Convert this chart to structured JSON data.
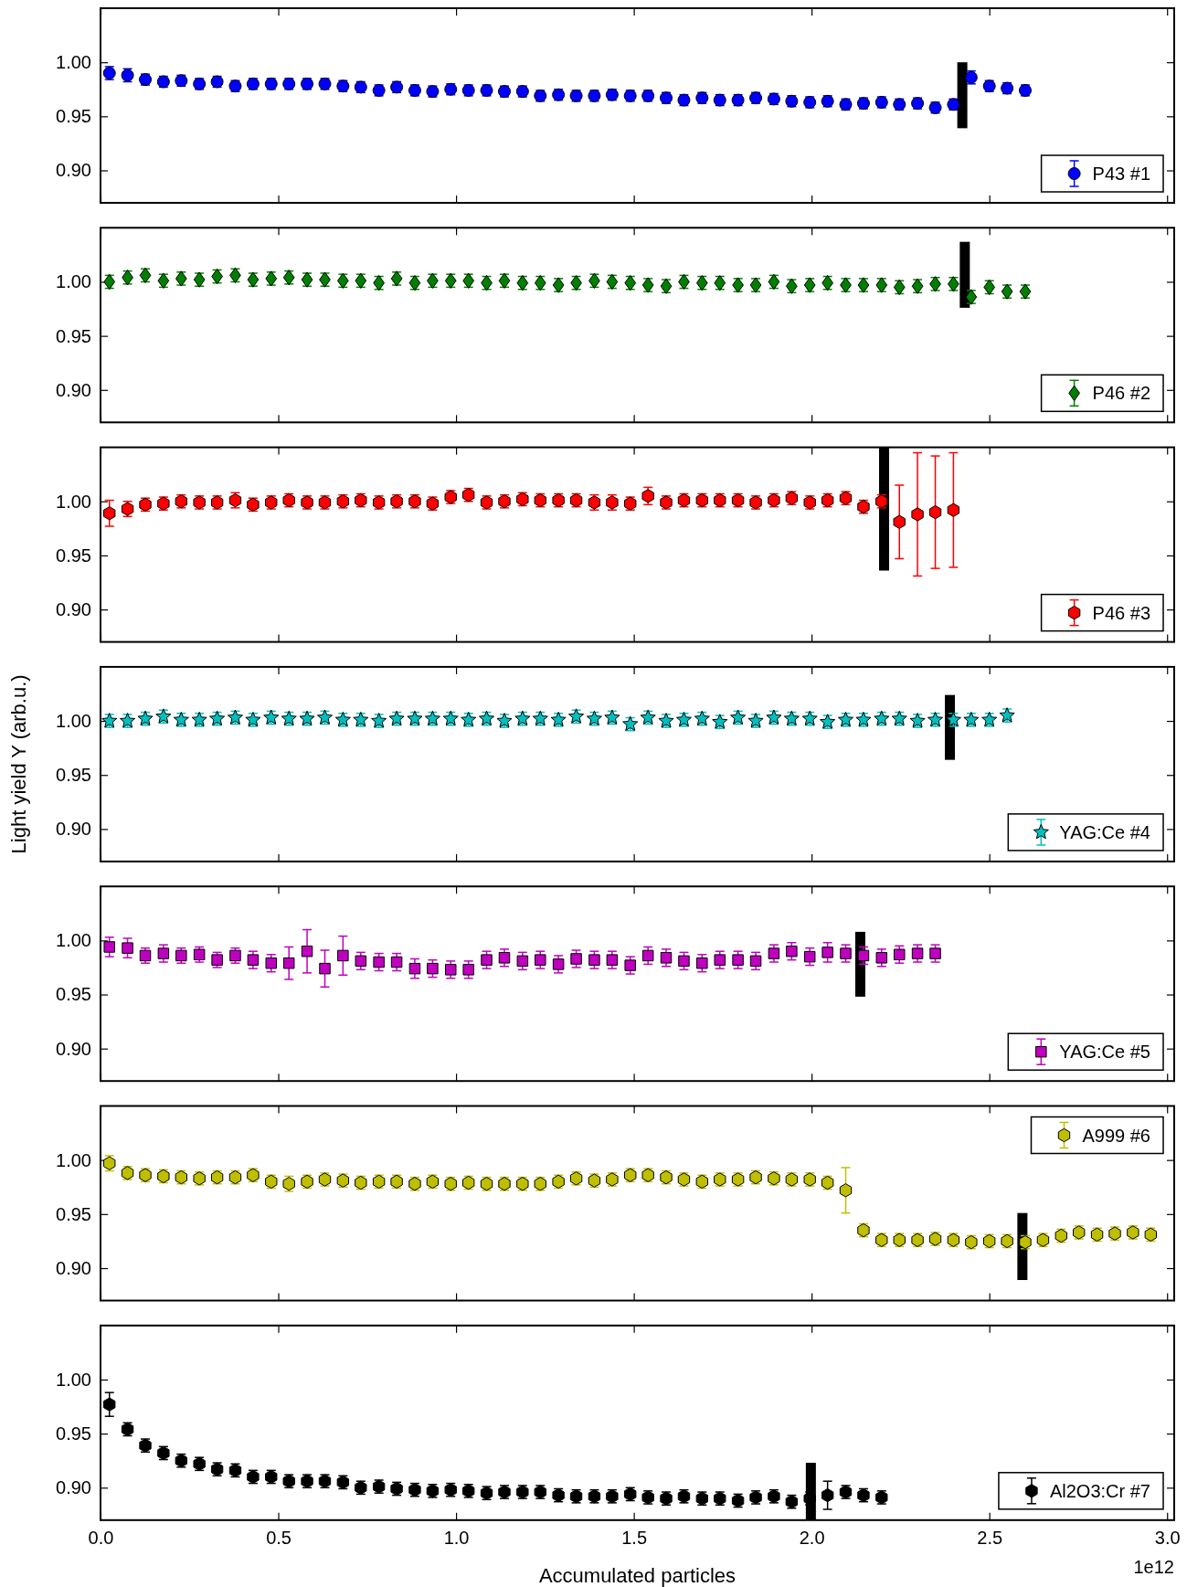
{
  "chart_data": [
    {
      "type": "scatter",
      "legend": "bottom right",
      "tick_labels": "y",
      "xlim": [
        0,
        3.02
      ],
      "xticks": [
        {
          "value": 0,
          "label": null
        },
        {
          "value": 0.5,
          "label": null
        },
        {
          "value": 1,
          "label": null
        },
        {
          "value": 1.5,
          "label": null
        },
        {
          "value": 2,
          "label": null
        },
        {
          "value": 2.5,
          "label": null
        },
        {
          "value": 3,
          "label": null
        }
      ],
      "ylim": [
        0.87,
        1.05
      ],
      "yticks": [
        {
          "value": 0.9,
          "label": "0.90"
        },
        {
          "value": 0.95,
          "label": "0.95"
        },
        {
          "value": 1,
          "label": "1.00"
        }
      ],
      "x": [
        0.025,
        0.076,
        0.126,
        0.177,
        0.227,
        0.278,
        0.328,
        0.379,
        0.429,
        0.48,
        0.53,
        0.581,
        0.631,
        0.682,
        0.732,
        0.783,
        0.833,
        0.884,
        0.934,
        0.985,
        1.035,
        1.086,
        1.136,
        1.187,
        1.237,
        1.288,
        1.338,
        1.389,
        1.439,
        1.49,
        1.54,
        1.591,
        1.641,
        1.692,
        1.742,
        1.793,
        1.843,
        1.894,
        1.944,
        1.995,
        2.045,
        2.096,
        2.146,
        2.197,
        2.247,
        2.298,
        2.348,
        2.399,
        2.449,
        2.5,
        2.55,
        2.601
      ],
      "series": [
        {
          "name": "P43 #1",
          "color": "#0000ff",
          "marker": "circle",
          "values": [
            0.99,
            0.988,
            0.984,
            0.982,
            0.983,
            0.98,
            0.982,
            0.978,
            0.98,
            0.98,
            0.98,
            0.98,
            0.98,
            0.978,
            0.977,
            0.974,
            0.977,
            0.974,
            0.973,
            0.975,
            0.974,
            0.974,
            0.973,
            0.973,
            0.969,
            0.97,
            0.969,
            0.969,
            0.97,
            0.969,
            0.969,
            0.967,
            0.965,
            0.967,
            0.965,
            0.965,
            0.967,
            0.966,
            0.964,
            0.963,
            0.964,
            0.961,
            0.962,
            0.963,
            0.961,
            0.962,
            0.958,
            0.961,
            0.986,
            0.978,
            0.976,
            0.974
          ],
          "errors": [
            0.006,
            0.006,
            0.005,
            0.005,
            0.005,
            0.005,
            0.005,
            0.005,
            0.005,
            0.005,
            0.005,
            0.005,
            0.005,
            0.005,
            0.005,
            0.005,
            0.005,
            0.005,
            0.005,
            0.005,
            0.005,
            0.005,
            0.005,
            0.005,
            0.005,
            0.005,
            0.005,
            0.005,
            0.005,
            0.005,
            0.005,
            0.005,
            0.005,
            0.005,
            0.005,
            0.005,
            0.005,
            0.005,
            0.005,
            0.005,
            0.005,
            0.005,
            0.005,
            0.005,
            0.005,
            0.005,
            0.005,
            0.005,
            0.006,
            0.005,
            0.005,
            0.005
          ]
        },
        {
          "type": "line",
          "color": "#000000",
          "x": [
            2.424,
            2.424
          ],
          "values": [
            0.939,
            1.0
          ]
        }
      ]
    },
    {
      "type": "scatter",
      "legend": "bottom right",
      "tick_labels": "y",
      "xlim": [
        0,
        3.02
      ],
      "xticks": [
        {
          "value": 0,
          "label": null
        },
        {
          "value": 0.5,
          "label": null
        },
        {
          "value": 1,
          "label": null
        },
        {
          "value": 1.5,
          "label": null
        },
        {
          "value": 2,
          "label": null
        },
        {
          "value": 2.5,
          "label": null
        },
        {
          "value": 3,
          "label": null
        }
      ],
      "ylim": [
        0.87,
        1.05
      ],
      "yticks": [
        {
          "value": 0.9,
          "label": "0.90"
        },
        {
          "value": 0.95,
          "label": "0.95"
        },
        {
          "value": 1,
          "label": "1.00"
        }
      ],
      "x": [
        0.025,
        0.076,
        0.126,
        0.177,
        0.227,
        0.278,
        0.328,
        0.379,
        0.429,
        0.48,
        0.53,
        0.581,
        0.631,
        0.682,
        0.732,
        0.783,
        0.833,
        0.884,
        0.934,
        0.985,
        1.035,
        1.086,
        1.136,
        1.187,
        1.237,
        1.288,
        1.338,
        1.389,
        1.439,
        1.49,
        1.54,
        1.591,
        1.641,
        1.692,
        1.742,
        1.793,
        1.843,
        1.894,
        1.944,
        1.995,
        2.045,
        2.096,
        2.146,
        2.197,
        2.247,
        2.298,
        2.348,
        2.399,
        2.449,
        2.5,
        2.55,
        2.601
      ],
      "series": [
        {
          "name": "P46 #2",
          "color": "#008000",
          "marker": "diamond",
          "values": [
            1.0,
            1.004,
            1.006,
            1.001,
            1.003,
            1.002,
            1.005,
            1.006,
            1.002,
            1.003,
            1.004,
            1.002,
            1.002,
            1.001,
            1.001,
            0.999,
            1.003,
            0.999,
            1.001,
            1.001,
            1.001,
            0.999,
            1.001,
            0.999,
            0.999,
            0.997,
            0.999,
            1.001,
            1.0,
            0.999,
            0.997,
            0.996,
            1.0,
            0.999,
            0.999,
            0.997,
            0.997,
            1.0,
            0.996,
            0.997,
            0.999,
            0.997,
            0.997,
            0.997,
            0.995,
            0.996,
            0.998,
            0.998,
            0.986,
            0.995,
            0.991,
            0.991
          ],
          "errors": [
            0.006,
            0.006,
            0.006,
            0.006,
            0.006,
            0.006,
            0.006,
            0.006,
            0.006,
            0.006,
            0.006,
            0.006,
            0.006,
            0.006,
            0.006,
            0.006,
            0.006,
            0.006,
            0.006,
            0.006,
            0.006,
            0.006,
            0.006,
            0.006,
            0.006,
            0.006,
            0.006,
            0.006,
            0.006,
            0.006,
            0.006,
            0.006,
            0.006,
            0.006,
            0.006,
            0.006,
            0.006,
            0.006,
            0.006,
            0.006,
            0.006,
            0.006,
            0.006,
            0.006,
            0.006,
            0.006,
            0.006,
            0.006,
            0.006,
            0.006,
            0.006,
            0.006
          ]
        },
        {
          "type": "line",
          "color": "#000000",
          "x": [
            2.431,
            2.431
          ],
          "values": [
            0.976,
            1.037
          ]
        }
      ]
    },
    {
      "type": "scatter",
      "legend": "bottom right",
      "tick_labels": "y",
      "xlim": [
        0,
        3.02
      ],
      "xticks": [
        {
          "value": 0,
          "label": null
        },
        {
          "value": 0.5,
          "label": null
        },
        {
          "value": 1,
          "label": null
        },
        {
          "value": 1.5,
          "label": null
        },
        {
          "value": 2,
          "label": null
        },
        {
          "value": 2.5,
          "label": null
        },
        {
          "value": 3,
          "label": null
        }
      ],
      "ylim": [
        0.87,
        1.05
      ],
      "yticks": [
        {
          "value": 0.9,
          "label": "0.90"
        },
        {
          "value": 0.95,
          "label": "0.95"
        },
        {
          "value": 1,
          "label": "1.00"
        }
      ],
      "x": [
        0.025,
        0.076,
        0.126,
        0.177,
        0.227,
        0.278,
        0.328,
        0.379,
        0.429,
        0.48,
        0.53,
        0.581,
        0.631,
        0.682,
        0.732,
        0.783,
        0.833,
        0.884,
        0.934,
        0.985,
        1.035,
        1.086,
        1.136,
        1.187,
        1.237,
        1.288,
        1.338,
        1.389,
        1.439,
        1.49,
        1.54,
        1.591,
        1.641,
        1.692,
        1.742,
        1.793,
        1.843,
        1.894,
        1.944,
        1.995,
        2.045,
        2.096,
        2.146,
        2.197,
        2.247,
        2.298,
        2.348,
        2.399
      ],
      "series": [
        {
          "name": "P46 #3",
          "color": "#ff0000",
          "values": [
            0.989,
            0.993,
            0.997,
            0.998,
            1.0,
            0.999,
            0.999,
            1.001,
            0.997,
            0.999,
            1.001,
            0.999,
            0.999,
            1.0,
            1.001,
            0.999,
            1.0,
            1.0,
            0.998,
            1.004,
            1.006,
            0.999,
            1.0,
            1.002,
            1.001,
            1.001,
            1.001,
            0.999,
            0.999,
            0.998,
            1.005,
            0.999,
            1.001,
            1.001,
            1.001,
            1.001,
            0.999,
            1.001,
            1.003,
            0.999,
            1.001,
            1.003,
            0.995,
            1.0,
            0.981,
            0.988,
            0.99,
            0.992
          ],
          "errors": [
            0.012,
            0.007,
            0.006,
            0.006,
            0.006,
            0.006,
            0.006,
            0.007,
            0.006,
            0.006,
            0.006,
            0.006,
            0.006,
            0.006,
            0.006,
            0.006,
            0.006,
            0.006,
            0.006,
            0.006,
            0.006,
            0.006,
            0.006,
            0.006,
            0.006,
            0.006,
            0.006,
            0.007,
            0.007,
            0.006,
            0.008,
            0.006,
            0.006,
            0.006,
            0.006,
            0.006,
            0.006,
            0.006,
            0.006,
            0.006,
            0.006,
            0.006,
            0.006,
            0.006,
            0.034,
            0.057,
            0.052,
            0.053
          ]
        },
        {
          "type": "line",
          "color": "#000000",
          "x": [
            2.204,
            2.204
          ],
          "values": [
            0.936,
            1.05
          ]
        }
      ]
    },
    {
      "type": "scatter",
      "ylabel": "Light yield Y (arb.u.)",
      "legend": "bottom right",
      "tick_labels": "y",
      "xlim": [
        0,
        3.02
      ],
      "xticks": [
        {
          "value": 0,
          "label": null
        },
        {
          "value": 0.5,
          "label": null
        },
        {
          "value": 1,
          "label": null
        },
        {
          "value": 1.5,
          "label": null
        },
        {
          "value": 2,
          "label": null
        },
        {
          "value": 2.5,
          "label": null
        },
        {
          "value": 3,
          "label": null
        }
      ],
      "ylim": [
        0.87,
        1.05
      ],
      "yticks": [
        {
          "value": 0.9,
          "label": "0.90"
        },
        {
          "value": 0.95,
          "label": "0.95"
        },
        {
          "value": 1,
          "label": "1.00"
        }
      ],
      "x": [
        0.025,
        0.076,
        0.126,
        0.177,
        0.227,
        0.278,
        0.328,
        0.379,
        0.429,
        0.48,
        0.53,
        0.581,
        0.631,
        0.682,
        0.732,
        0.783,
        0.833,
        0.884,
        0.934,
        0.985,
        1.035,
        1.086,
        1.136,
        1.187,
        1.237,
        1.288,
        1.338,
        1.389,
        1.439,
        1.49,
        1.54,
        1.591,
        1.641,
        1.692,
        1.742,
        1.793,
        1.843,
        1.894,
        1.944,
        1.995,
        2.045,
        2.096,
        2.146,
        2.197,
        2.247,
        2.298,
        2.348,
        2.399,
        2.449,
        2.5,
        2.55
      ],
      "series": [
        {
          "name": "YAG:Ce #4",
          "color": "#00bfbf",
          "marker": "star",
          "values": [
            1.0,
            1.0,
            1.002,
            1.004,
            1.001,
            1.001,
            1.002,
            1.003,
            1.001,
            1.003,
            1.002,
            1.002,
            1.003,
            1.001,
            1.001,
            1.0,
            1.002,
            1.002,
            1.002,
            1.002,
            1.001,
            1.002,
            1.0,
            1.002,
            1.002,
            1.001,
            1.004,
            1.002,
            1.003,
            0.997,
            1.003,
            1.0,
            1.001,
            1.002,
            0.999,
            1.003,
            1.0,
            1.003,
            1.002,
            1.002,
            0.999,
            1.001,
            1.001,
            1.002,
            1.002,
            1.0,
            1.001,
            1.001,
            1.001,
            1.001,
            1.005
          ],
          "errors": [
            0.006,
            0.006,
            0.006,
            0.006,
            0.006,
            0.006,
            0.006,
            0.006,
            0.006,
            0.006,
            0.006,
            0.006,
            0.006,
            0.006,
            0.006,
            0.006,
            0.006,
            0.006,
            0.006,
            0.006,
            0.006,
            0.006,
            0.006,
            0.006,
            0.006,
            0.006,
            0.006,
            0.006,
            0.006,
            0.006,
            0.006,
            0.006,
            0.006,
            0.006,
            0.006,
            0.006,
            0.006,
            0.006,
            0.006,
            0.006,
            0.006,
            0.006,
            0.006,
            0.006,
            0.006,
            0.006,
            0.006,
            0.006,
            0.006,
            0.006,
            0.006
          ]
        },
        {
          "type": "line",
          "color": "#000000",
          "x": [
            2.389,
            2.389
          ],
          "values": [
            0.964,
            1.024
          ]
        }
      ]
    },
    {
      "type": "scatter",
      "legend": "bottom right",
      "tick_labels": "y",
      "xlim": [
        0,
        3.02
      ],
      "xticks": [
        {
          "value": 0,
          "label": null
        },
        {
          "value": 0.5,
          "label": null
        },
        {
          "value": 1,
          "label": null
        },
        {
          "value": 1.5,
          "label": null
        },
        {
          "value": 2,
          "label": null
        },
        {
          "value": 2.5,
          "label": null
        },
        {
          "value": 3,
          "label": null
        }
      ],
      "ylim": [
        0.87,
        1.05
      ],
      "yticks": [
        {
          "value": 0.9,
          "label": "0.90"
        },
        {
          "value": 0.95,
          "label": "0.95"
        },
        {
          "value": 1,
          "label": "1.00"
        }
      ],
      "x": [
        0.025,
        0.076,
        0.126,
        0.177,
        0.227,
        0.278,
        0.328,
        0.379,
        0.429,
        0.48,
        0.53,
        0.581,
        0.631,
        0.682,
        0.732,
        0.783,
        0.833,
        0.884,
        0.934,
        0.985,
        1.035,
        1.086,
        1.136,
        1.187,
        1.237,
        1.288,
        1.338,
        1.389,
        1.439,
        1.49,
        1.54,
        1.591,
        1.641,
        1.692,
        1.742,
        1.793,
        1.843,
        1.894,
        1.944,
        1.995,
        2.045,
        2.096,
        2.146,
        2.197,
        2.247,
        2.298,
        2.348
      ],
      "series": [
        {
          "name": "YAG:Ce #5",
          "color": "#bf00bf",
          "marker": "square",
          "values": [
            0.994,
            0.993,
            0.986,
            0.988,
            0.986,
            0.987,
            0.982,
            0.986,
            0.982,
            0.979,
            0.979,
            0.99,
            0.974,
            0.986,
            0.981,
            0.98,
            0.98,
            0.974,
            0.974,
            0.973,
            0.973,
            0.982,
            0.984,
            0.981,
            0.982,
            0.978,
            0.983,
            0.982,
            0.982,
            0.977,
            0.986,
            0.984,
            0.981,
            0.979,
            0.982,
            0.982,
            0.981,
            0.988,
            0.99,
            0.985,
            0.989,
            0.988,
            0.986,
            0.984,
            0.987,
            0.988,
            0.988
          ],
          "errors": [
            0.009,
            0.009,
            0.007,
            0.008,
            0.007,
            0.007,
            0.007,
            0.007,
            0.008,
            0.008,
            0.015,
            0.02,
            0.017,
            0.018,
            0.008,
            0.008,
            0.008,
            0.009,
            0.008,
            0.008,
            0.008,
            0.008,
            0.008,
            0.008,
            0.008,
            0.008,
            0.008,
            0.008,
            0.008,
            0.008,
            0.008,
            0.008,
            0.008,
            0.008,
            0.008,
            0.008,
            0.008,
            0.008,
            0.008,
            0.008,
            0.009,
            0.008,
            0.008,
            0.008,
            0.008,
            0.008,
            0.008
          ]
        },
        {
          "type": "line",
          "color": "#000000",
          "x": [
            2.137,
            2.137
          ],
          "values": [
            0.948,
            1.008
          ]
        }
      ]
    },
    {
      "type": "scatter",
      "legend": "top right",
      "tick_labels": "y",
      "xlim": [
        0,
        3.02
      ],
      "xticks": [
        {
          "value": 0,
          "label": null
        },
        {
          "value": 0.5,
          "label": null
        },
        {
          "value": 1,
          "label": null
        },
        {
          "value": 1.5,
          "label": null
        },
        {
          "value": 2,
          "label": null
        },
        {
          "value": 2.5,
          "label": null
        },
        {
          "value": 3,
          "label": null
        }
      ],
      "ylim": [
        0.87,
        1.05
      ],
      "yticks": [
        {
          "value": 0.9,
          "label": "0.90"
        },
        {
          "value": 0.95,
          "label": "0.95"
        },
        {
          "value": 1,
          "label": "1.00"
        }
      ],
      "x": [
        0.025,
        0.076,
        0.126,
        0.177,
        0.227,
        0.278,
        0.328,
        0.379,
        0.429,
        0.48,
        0.53,
        0.581,
        0.631,
        0.682,
        0.732,
        0.783,
        0.833,
        0.884,
        0.934,
        0.985,
        1.035,
        1.086,
        1.136,
        1.187,
        1.237,
        1.288,
        1.338,
        1.389,
        1.439,
        1.49,
        1.54,
        1.591,
        1.641,
        1.692,
        1.742,
        1.793,
        1.843,
        1.894,
        1.944,
        1.995,
        2.045,
        2.096,
        2.146,
        2.197,
        2.247,
        2.298,
        2.348,
        2.399,
        2.449,
        2.5,
        2.55,
        2.601,
        2.651,
        2.702,
        2.752,
        2.803,
        2.853,
        2.904,
        2.954
      ],
      "series": [
        {
          "name": "A999 #6",
          "color": "#bfbf00",
          "values": [
            0.997,
            0.988,
            0.986,
            0.985,
            0.984,
            0.983,
            0.984,
            0.984,
            0.986,
            0.98,
            0.978,
            0.98,
            0.982,
            0.981,
            0.979,
            0.98,
            0.98,
            0.978,
            0.98,
            0.978,
            0.979,
            0.978,
            0.978,
            0.978,
            0.978,
            0.98,
            0.983,
            0.981,
            0.982,
            0.986,
            0.986,
            0.984,
            0.982,
            0.98,
            0.982,
            0.982,
            0.984,
            0.983,
            0.982,
            0.982,
            0.979,
            0.972,
            0.935,
            0.926,
            0.926,
            0.926,
            0.927,
            0.926,
            0.924,
            0.925,
            0.925,
            0.924,
            0.926,
            0.93,
            0.933,
            0.931,
            0.932,
            0.933,
            0.931
          ],
          "errors": [
            0.007,
            0.006,
            0.006,
            0.006,
            0.006,
            0.006,
            0.006,
            0.006,
            0.006,
            0.006,
            0.007,
            0.006,
            0.006,
            0.006,
            0.006,
            0.006,
            0.006,
            0.006,
            0.006,
            0.006,
            0.006,
            0.006,
            0.006,
            0.006,
            0.006,
            0.006,
            0.006,
            0.006,
            0.006,
            0.006,
            0.006,
            0.006,
            0.006,
            0.006,
            0.006,
            0.006,
            0.006,
            0.006,
            0.006,
            0.006,
            0.006,
            0.021,
            0.006,
            0.006,
            0.006,
            0.006,
            0.006,
            0.006,
            0.006,
            0.006,
            0.006,
            0.006,
            0.006,
            0.006,
            0.006,
            0.006,
            0.006,
            0.006,
            0.006
          ]
        },
        {
          "type": "line",
          "color": "#000000",
          "x": [
            2.593,
            2.593
          ],
          "values": [
            0.889,
            0.951
          ]
        }
      ]
    },
    {
      "type": "scatter",
      "xlabel": "Accumulated particles",
      "legend": "bottom right",
      "annotations": [
        "1e12"
      ],
      "xlim": [
        0,
        3.02
      ],
      "xticks": [
        {
          "value": 0,
          "label": "0.0"
        },
        {
          "value": 0.5,
          "label": "0.5"
        },
        {
          "value": 1,
          "label": "1.0"
        },
        {
          "value": 1.5,
          "label": "1.5"
        },
        {
          "value": 2,
          "label": "2.0"
        },
        {
          "value": 2.5,
          "label": "2.5"
        },
        {
          "value": 3,
          "label": "3.0"
        }
      ],
      "ylim": [
        0.87,
        1.05
      ],
      "yticks": [
        {
          "value": 0.9,
          "label": "0.90"
        },
        {
          "value": 0.95,
          "label": "0.95"
        },
        {
          "value": 1,
          "label": "1.00"
        }
      ],
      "x": [
        0.025,
        0.076,
        0.126,
        0.177,
        0.227,
        0.278,
        0.328,
        0.379,
        0.429,
        0.48,
        0.53,
        0.581,
        0.631,
        0.682,
        0.732,
        0.783,
        0.833,
        0.884,
        0.934,
        0.985,
        1.035,
        1.086,
        1.136,
        1.187,
        1.237,
        1.288,
        1.338,
        1.389,
        1.439,
        1.49,
        1.54,
        1.591,
        1.641,
        1.692,
        1.742,
        1.793,
        1.843,
        1.894,
        1.944,
        1.995,
        2.045,
        2.096,
        2.146,
        2.197
      ],
      "series": [
        {
          "name": "Al2O3:Cr #7",
          "color": "#000000",
          "values": [
            0.977,
            0.954,
            0.939,
            0.932,
            0.925,
            0.922,
            0.917,
            0.916,
            0.91,
            0.91,
            0.906,
            0.906,
            0.906,
            0.905,
            0.9,
            0.901,
            0.899,
            0.898,
            0.897,
            0.898,
            0.897,
            0.895,
            0.896,
            0.896,
            0.896,
            0.893,
            0.892,
            0.892,
            0.892,
            0.894,
            0.891,
            0.89,
            0.892,
            0.89,
            0.89,
            0.888,
            0.891,
            0.892,
            0.887,
            0.89,
            0.893,
            0.896,
            0.893,
            0.891
          ],
          "errors": [
            0.011,
            0.006,
            0.006,
            0.006,
            0.006,
            0.006,
            0.006,
            0.006,
            0.006,
            0.006,
            0.006,
            0.006,
            0.006,
            0.006,
            0.006,
            0.006,
            0.006,
            0.006,
            0.006,
            0.006,
            0.006,
            0.006,
            0.006,
            0.006,
            0.006,
            0.006,
            0.006,
            0.006,
            0.006,
            0.006,
            0.006,
            0.006,
            0.006,
            0.006,
            0.006,
            0.006,
            0.006,
            0.006,
            0.006,
            0.006,
            0.013,
            0.006,
            0.006,
            0.006
          ]
        },
        {
          "type": "line",
          "color": "#000000",
          "x": [
            1.998,
            1.998
          ],
          "values": [
            0.87,
            0.923
          ]
        }
      ]
    }
  ]
}
